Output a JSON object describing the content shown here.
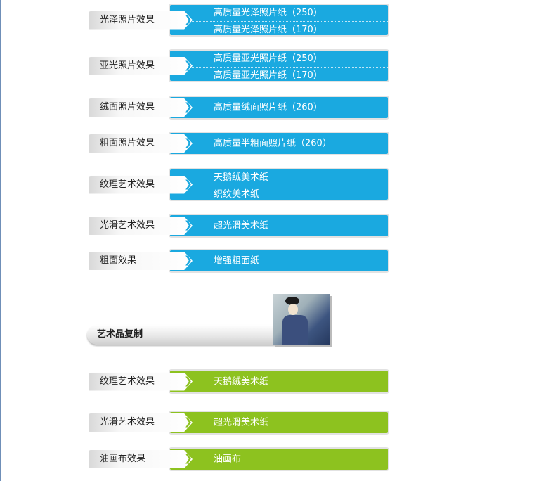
{
  "photo_section": [
    {
      "label": "光泽照片效果",
      "items": [
        "高质量光泽照片纸（250）",
        "高质量光泽照片纸（170）"
      ]
    },
    {
      "label": "亚光照片效果",
      "items": [
        "高质量亚光照片纸（250）",
        "高质量亚光照片纸（170）"
      ]
    },
    {
      "label": "绒面照片效果",
      "items": [
        "高质量绒面照片纸（260）"
      ]
    },
    {
      "label": "粗面照片效果",
      "items": [
        "高质量半粗面照片纸（260）"
      ]
    },
    {
      "label": "纹理艺术效果",
      "items": [
        "天鹅绒美术纸",
        "织纹美术纸"
      ]
    },
    {
      "label": "光滑艺术效果",
      "items": [
        "超光滑美术纸"
      ]
    },
    {
      "label": "粗面效果",
      "items": [
        "增强粗面纸"
      ]
    }
  ],
  "art_section": {
    "title": "艺术品复制",
    "image": "ukiyo-e-woman-painting",
    "rows": [
      {
        "label": "纹理艺术效果",
        "items": [
          "天鹅绒美术纸"
        ]
      },
      {
        "label": "光滑艺术效果",
        "items": [
          "超光滑美术纸"
        ]
      },
      {
        "label": "油画布效果",
        "items": [
          "油画布"
        ]
      }
    ]
  },
  "colors": {
    "blue": "#1aa9e0",
    "green": "#8dc21f"
  }
}
